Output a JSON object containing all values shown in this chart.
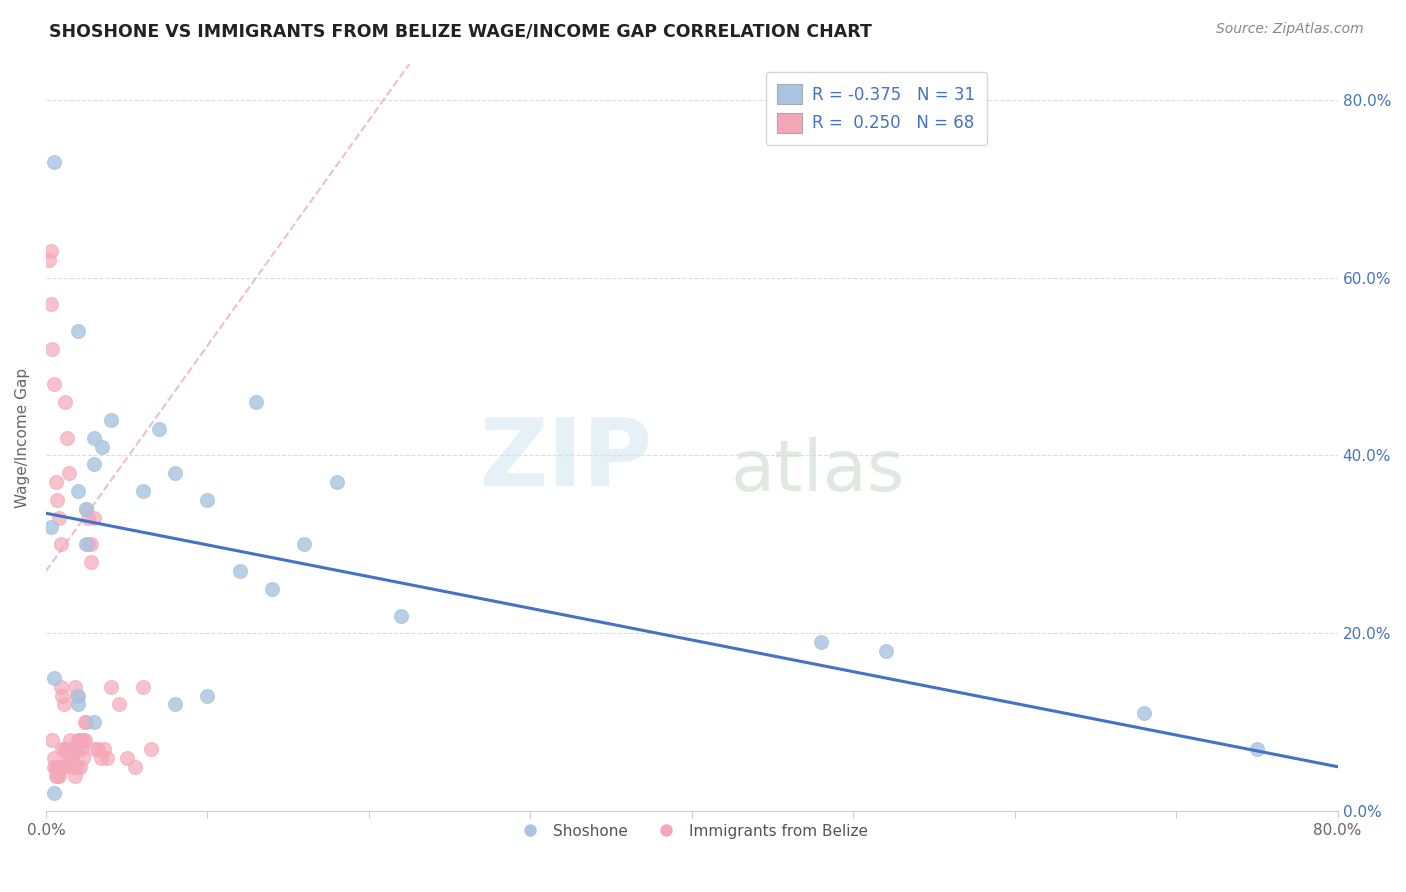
{
  "title": "SHOSHONE VS IMMIGRANTS FROM BELIZE WAGE/INCOME GAP CORRELATION CHART",
  "source": "Source: ZipAtlas.com",
  "ylabel": "Wage/Income Gap",
  "xlim": [
    0.0,
    0.8
  ],
  "ylim": [
    0.0,
    0.84
  ],
  "shoshone_color": "#a8c4e0",
  "belize_color": "#f4a7b9",
  "trend_shoshone_color": "#4472c4",
  "shoshone_R": -0.375,
  "shoshone_N": 31,
  "belize_R": 0.25,
  "belize_N": 68,
  "shoshone_x": [
    0.005,
    0.02,
    0.13,
    0.07,
    0.04,
    0.03,
    0.035,
    0.02,
    0.025,
    0.06,
    0.1,
    0.16,
    0.22,
    0.48,
    0.52,
    0.68,
    0.75,
    0.005,
    0.02,
    0.025,
    0.03,
    0.08,
    0.12,
    0.02,
    0.03,
    0.08,
    0.1,
    0.14,
    0.003,
    0.005,
    0.18
  ],
  "shoshone_y": [
    0.73,
    0.54,
    0.46,
    0.43,
    0.44,
    0.42,
    0.41,
    0.36,
    0.34,
    0.36,
    0.35,
    0.3,
    0.22,
    0.19,
    0.18,
    0.11,
    0.07,
    0.15,
    0.13,
    0.3,
    0.39,
    0.38,
    0.27,
    0.12,
    0.1,
    0.12,
    0.13,
    0.25,
    0.32,
    0.02,
    0.37
  ],
  "belize_x": [
    0.002,
    0.003,
    0.003,
    0.004,
    0.004,
    0.005,
    0.005,
    0.005,
    0.006,
    0.006,
    0.006,
    0.007,
    0.007,
    0.007,
    0.008,
    0.008,
    0.008,
    0.009,
    0.009,
    0.01,
    0.01,
    0.01,
    0.011,
    0.011,
    0.012,
    0.012,
    0.013,
    0.013,
    0.014,
    0.014,
    0.015,
    0.015,
    0.016,
    0.016,
    0.017,
    0.017,
    0.018,
    0.018,
    0.019,
    0.019,
    0.02,
    0.02,
    0.021,
    0.021,
    0.022,
    0.022,
    0.023,
    0.023,
    0.024,
    0.024,
    0.025,
    0.025,
    0.026,
    0.026,
    0.028,
    0.028,
    0.03,
    0.03,
    0.032,
    0.034,
    0.036,
    0.038,
    0.04,
    0.045,
    0.05,
    0.055,
    0.06,
    0.065
  ],
  "belize_y": [
    0.62,
    0.57,
    0.63,
    0.52,
    0.08,
    0.48,
    0.06,
    0.05,
    0.37,
    0.05,
    0.04,
    0.35,
    0.05,
    0.04,
    0.33,
    0.05,
    0.04,
    0.3,
    0.14,
    0.13,
    0.05,
    0.07,
    0.05,
    0.12,
    0.46,
    0.07,
    0.42,
    0.07,
    0.38,
    0.06,
    0.08,
    0.06,
    0.07,
    0.06,
    0.05,
    0.07,
    0.04,
    0.14,
    0.13,
    0.05,
    0.07,
    0.08,
    0.05,
    0.08,
    0.08,
    0.07,
    0.08,
    0.06,
    0.08,
    0.1,
    0.1,
    0.34,
    0.33,
    0.3,
    0.3,
    0.28,
    0.33,
    0.07,
    0.07,
    0.06,
    0.07,
    0.06,
    0.14,
    0.12,
    0.06,
    0.05,
    0.14,
    0.07
  ],
  "watermark_zip": "ZIP",
  "watermark_atlas": "atlas",
  "background_color": "#ffffff",
  "grid_color": "#dddddd",
  "legend_text_color": "#4472c4"
}
